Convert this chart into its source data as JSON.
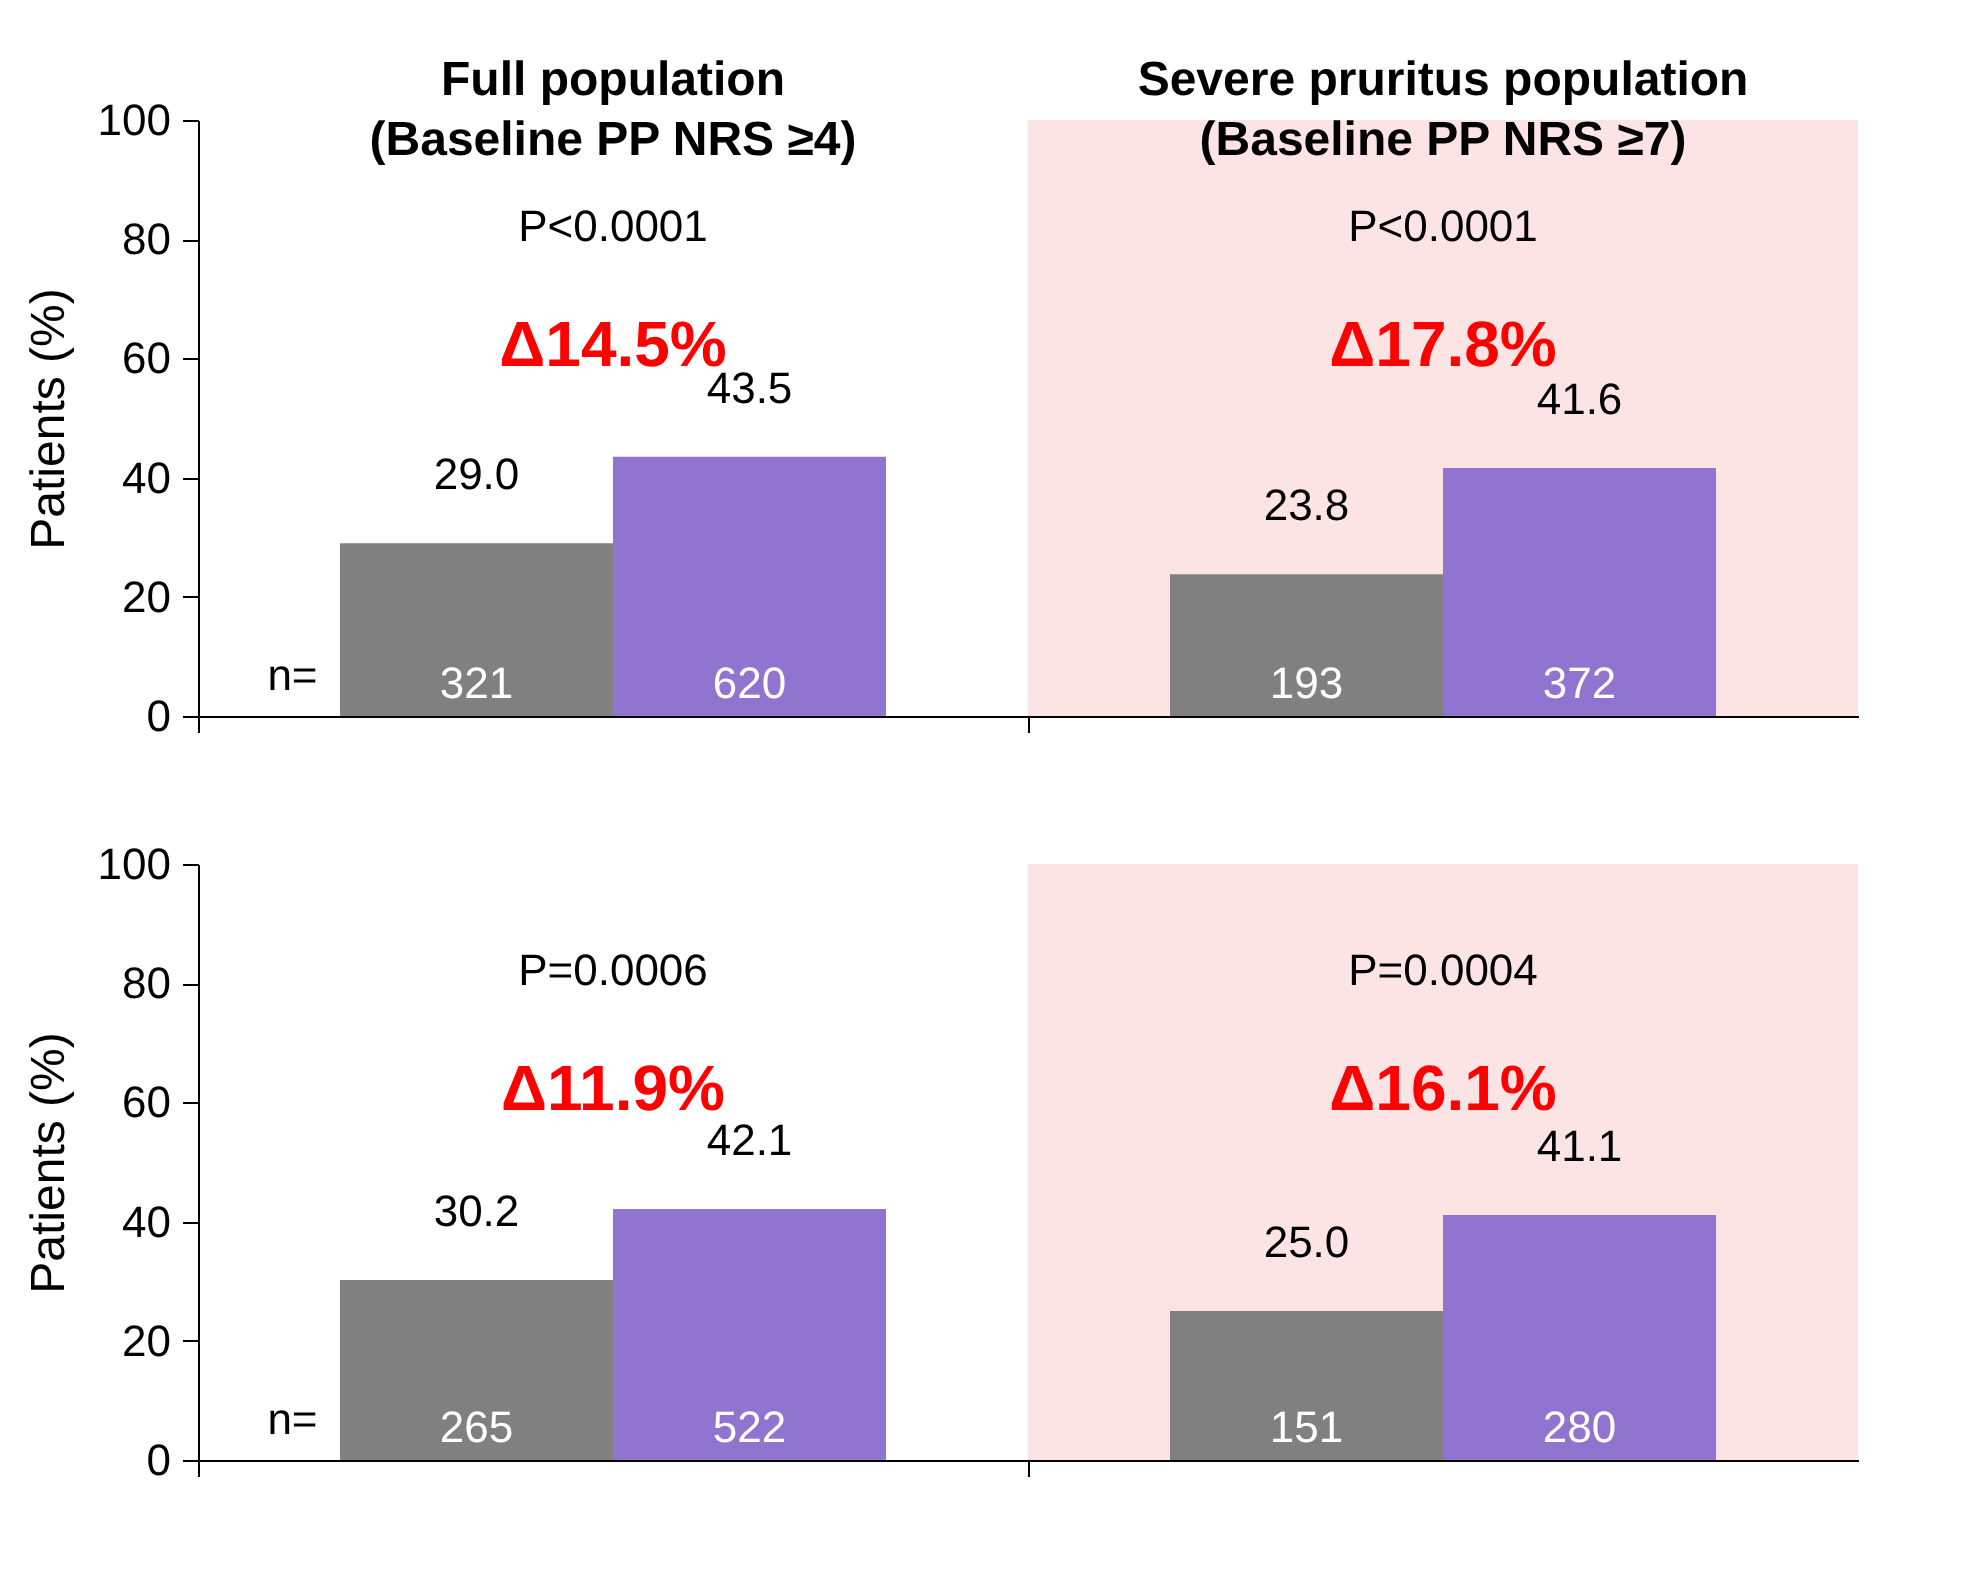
{
  "chart_data": [
    {
      "type": "bar",
      "categories": [
        "Full population\n(Baseline PP NRS ≥4)",
        "Severe pruritus population\n(Baseline PP NRS ≥7)"
      ],
      "ylabel": "Patients (%)",
      "ylim": [
        0,
        100
      ],
      "yticks": [
        0,
        20,
        40,
        60,
        80,
        100
      ],
      "series": [
        {
          "color": "#808080",
          "values": [
            29.0,
            23.8
          ],
          "value_labels": [
            "29.0",
            "23.8"
          ]
        },
        {
          "color": "#9074cf",
          "values": [
            43.5,
            41.6
          ],
          "value_labels": [
            "43.5",
            "41.6"
          ]
        }
      ],
      "bands": [
        {
          "axis": "x",
          "from": "Severe pruritus population\n(Baseline PP NRS ≥7)",
          "to": "Severe pruritus population\n(Baseline PP NRS ≥7)",
          "color": "#fde4e4"
        }
      ],
      "annotations": [
        "P<0.0001",
        "Δ14.5%",
        "P<0.0001",
        "Δ17.8%",
        "n=",
        "321",
        "620",
        "193",
        "372"
      ]
    },
    {
      "type": "bar",
      "categories": [
        "Full population\n(Baseline PP NRS ≥4)",
        "Severe pruritus population\n(Baseline PP NRS ≥7)"
      ],
      "ylabel": "Patients (%)",
      "ylim": [
        0,
        100
      ],
      "yticks": [
        0,
        20,
        40,
        60,
        80,
        100
      ],
      "tick_labels": "y",
      "series": [
        {
          "color": "#808080",
          "values": [
            30.2,
            25.0
          ],
          "value_labels": [
            "30.2",
            "25.0"
          ]
        },
        {
          "color": "#9074cf",
          "values": [
            42.1,
            41.1
          ],
          "value_labels": [
            "42.1",
            "41.1"
          ]
        }
      ],
      "bands": [
        {
          "axis": "x",
          "from": "Severe pruritus population\n(Baseline PP NRS ≥7)",
          "to": "Severe pruritus population\n(Baseline PP NRS ≥7)",
          "color": "#fde4e4"
        }
      ],
      "annotations": [
        "P=0.0006",
        "Δ11.9%",
        "P=0.0004",
        "Δ16.1%",
        "n=",
        "265",
        "522",
        "151",
        "280"
      ]
    }
  ]
}
